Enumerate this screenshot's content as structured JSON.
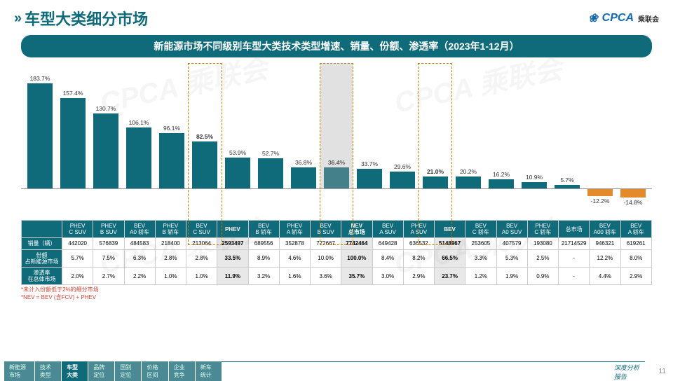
{
  "header": {
    "title": "车型大类细分市场",
    "logo_en": "CPCA",
    "logo_cn": "乘联会"
  },
  "banner": "新能源市场不同级别车型大类技术类型增速、销量、份额、渗透率（2023年1-12月）",
  "chart": {
    "type": "bar",
    "title_fontsize": 14,
    "label_fontsize": 8.5,
    "axis_max": 200,
    "axis_min": -20,
    "baseline_color": "#999999",
    "pos_color": "#0f6b7a",
    "neg_color": "#e38b2c",
    "bg": "#ffffff",
    "highlight_indices": [
      5,
      9,
      12
    ],
    "highlight_fill_index": 9,
    "categories": [
      "PHEV C SUV",
      "PHEV B SUV",
      "BEV A0 轿车",
      "PHEV B 轿车",
      "BEV C SUV",
      "PHEV",
      "BEV B 轿车",
      "PHEV A 轿车",
      "BEV B SUV",
      "NEV 总市场",
      "BEV A SUV",
      "PHEV A SUV",
      "BEV",
      "BEV C 轿车",
      "BEV A0 SUV",
      "PHEV C 轿车",
      "总市场",
      "BEV A00 轿车",
      "BEV A 轿车"
    ],
    "values": [
      183.7,
      157.4,
      130.7,
      106.1,
      96.1,
      82.5,
      53.9,
      52.7,
      36.8,
      36.4,
      33.7,
      29.6,
      21.0,
      20.2,
      16.2,
      10.9,
      5.7,
      -12.2,
      -14.8
    ]
  },
  "table": {
    "row_headers": [
      "销量（辆）",
      "份额 占新能源市场",
      "渗透率 在总体市场"
    ],
    "rows": [
      [
        "442020",
        "576839",
        "484583",
        "218400",
        "213064",
        "2593497",
        "689556",
        "352878",
        "772667",
        "7742464",
        "649428",
        "636532",
        "5148967",
        "253605",
        "407579",
        "193080",
        "21714529",
        "946321",
        "619261"
      ],
      [
        "5.7%",
        "7.5%",
        "6.3%",
        "2.8%",
        "2.8%",
        "33.5%",
        "8.9%",
        "4.6%",
        "10.0%",
        "100.0%",
        "8.4%",
        "8.2%",
        "66.5%",
        "3.3%",
        "5.3%",
        "2.5%",
        "-",
        "12.2%",
        "8.0%"
      ],
      [
        "2.0%",
        "2.7%",
        "2.2%",
        "1.0%",
        "1.0%",
        "11.9%",
        "3.2%",
        "1.6%",
        "3.6%",
        "35.7%",
        "3.0%",
        "2.9%",
        "23.7%",
        "1.2%",
        "1.9%",
        "0.9%",
        "-",
        "4.4%",
        "2.9%"
      ]
    ]
  },
  "notes": [
    "*未计入份额低于2%的细分市场",
    "*NEV = BEV (含FCV) + PHEV"
  ],
  "footer": {
    "tabs": [
      "新能源市场",
      "技术类型",
      "车型大类",
      "品牌定位",
      "国别定位",
      "价格区间",
      "企业竞争",
      "新车统计"
    ],
    "active_tab": 2,
    "right_text": "深度分析报告",
    "page": "11"
  }
}
